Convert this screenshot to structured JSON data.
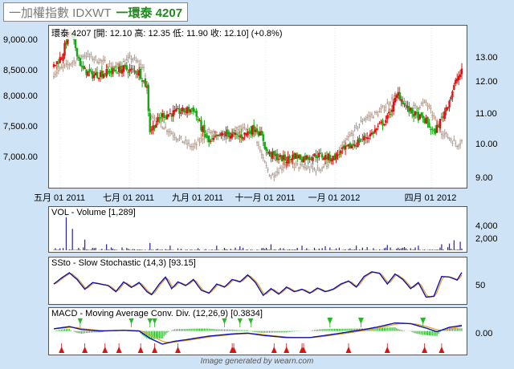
{
  "header": {
    "index_label": "一加權指數 IDXWT",
    "stock_label": "一環泰 4207"
  },
  "price_panel": {
    "title": "環泰 4207 [開: 12.10  高: 12.35  低: 11.90  收: 12.10] (+0.8%)"
  },
  "volume_panel": {
    "title": "VOL - Volume [1,289]"
  },
  "sto_panel": {
    "title": "SSto - Slow Stochastic (14,3) [93.15]"
  },
  "macd_panel": {
    "title": "MACD - Moving Average Conv. Div. (12,26,9) [0.3834]"
  },
  "footer": "Image generated by wearn.com",
  "colors": {
    "up": "#dd1111",
    "down": "#11aa11",
    "index_line": "#b09a8c",
    "k_line": "#1111aa",
    "d_line": "#e0a020",
    "volume": "#2222aa",
    "signal_buy": "#dd1111",
    "signal_sell": "#22bb22"
  },
  "chart_data": [
    {
      "type": "candlestick",
      "name": "price",
      "x_ticks": [
        "五月 01 2011",
        "七月 01 2011",
        "九月 01 2011",
        "十一月 01 2011",
        "一月 01 2012",
        "四月 01 2012"
      ],
      "left_axis_ticks": [
        "9,000.00",
        "8,500.00",
        "8,000.00",
        "7,500.00",
        "7,000.00"
      ],
      "right_axis_ticks": [
        "13.00",
        "12.00",
        "11.00",
        "10.00",
        "9.00"
      ],
      "left_range": [
        6800,
        9200
      ],
      "right_range": [
        8.5,
        13.5
      ],
      "stock_keypoints": [
        [
          0,
          12.3
        ],
        [
          5,
          12.6
        ],
        [
          10,
          13.4
        ],
        [
          14,
          12.9
        ],
        [
          18,
          12.2
        ],
        [
          25,
          12.0
        ],
        [
          35,
          12.1
        ],
        [
          45,
          12.2
        ],
        [
          55,
          12.1
        ],
        [
          60,
          11.6
        ],
        [
          62,
          10.2
        ],
        [
          70,
          10.7
        ],
        [
          80,
          10.8
        ],
        [
          90,
          10.9
        ],
        [
          95,
          10.3
        ],
        [
          100,
          9.8
        ],
        [
          110,
          10.1
        ],
        [
          120,
          10.0
        ],
        [
          130,
          10.3
        ],
        [
          135,
          9.9
        ],
        [
          137,
          9.5
        ],
        [
          143,
          9.35
        ],
        [
          150,
          9.25
        ],
        [
          155,
          9.4
        ],
        [
          160,
          9.3
        ],
        [
          170,
          9.4
        ],
        [
          180,
          9.3
        ],
        [
          185,
          9.5
        ],
        [
          195,
          9.8
        ],
        [
          205,
          10.1
        ],
        [
          215,
          10.6
        ],
        [
          222,
          11.4
        ],
        [
          228,
          10.9
        ],
        [
          233,
          10.7
        ],
        [
          240,
          10.5
        ],
        [
          245,
          10.1
        ],
        [
          250,
          10.6
        ],
        [
          255,
          11.2
        ],
        [
          260,
          11.9
        ],
        [
          263,
          12.1
        ]
      ],
      "index_keypoints": [
        [
          0,
          8500
        ],
        [
          10,
          8650
        ],
        [
          20,
          8800
        ],
        [
          30,
          8700
        ],
        [
          40,
          8600
        ],
        [
          50,
          8750
        ],
        [
          58,
          8600
        ],
        [
          62,
          7900
        ],
        [
          70,
          7700
        ],
        [
          80,
          7500
        ],
        [
          90,
          7350
        ],
        [
          100,
          7600
        ],
        [
          110,
          7500
        ],
        [
          120,
          7650
        ],
        [
          130,
          7550
        ],
        [
          135,
          7150
        ],
        [
          140,
          6900
        ],
        [
          145,
          7000
        ],
        [
          150,
          7100
        ],
        [
          160,
          7050
        ],
        [
          170,
          7000
        ],
        [
          180,
          7150
        ],
        [
          190,
          7500
        ],
        [
          200,
          7800
        ],
        [
          210,
          7900
        ],
        [
          220,
          8150
        ],
        [
          230,
          7950
        ],
        [
          240,
          8050
        ],
        [
          250,
          7600
        ],
        [
          260,
          7400
        ],
        [
          263,
          7450
        ]
      ],
      "bars": 264
    },
    {
      "type": "bar",
      "name": "volume",
      "y_ticks": [
        "4,000",
        "2,000"
      ],
      "ylim": [
        0,
        6000
      ],
      "spikes": [
        [
          8,
          5300
        ],
        [
          12,
          3200
        ],
        [
          20,
          1600
        ],
        [
          34,
          900
        ],
        [
          62,
          1100
        ],
        [
          75,
          700
        ],
        [
          105,
          700
        ],
        [
          120,
          600
        ],
        [
          140,
          900
        ],
        [
          160,
          700
        ],
        [
          175,
          600
        ],
        [
          195,
          700
        ],
        [
          215,
          800
        ],
        [
          235,
          700
        ],
        [
          250,
          900
        ],
        [
          255,
          1000
        ],
        [
          258,
          1500
        ],
        [
          262,
          1289
        ]
      ]
    },
    {
      "type": "line",
      "name": "slow_stochastic",
      "y_ticks": [
        "50"
      ],
      "ylim": [
        0,
        100
      ],
      "k_keypoints": [
        [
          0,
          55
        ],
        [
          5,
          75
        ],
        [
          10,
          92
        ],
        [
          15,
          70
        ],
        [
          20,
          38
        ],
        [
          25,
          60
        ],
        [
          30,
          55
        ],
        [
          35,
          50
        ],
        [
          40,
          30
        ],
        [
          45,
          62
        ],
        [
          50,
          44
        ],
        [
          55,
          60
        ],
        [
          60,
          30
        ],
        [
          63,
          20
        ],
        [
          68,
          55
        ],
        [
          72,
          78
        ],
        [
          76,
          40
        ],
        [
          80,
          62
        ],
        [
          85,
          50
        ],
        [
          90,
          70
        ],
        [
          95,
          35
        ],
        [
          100,
          25
        ],
        [
          105,
          55
        ],
        [
          110,
          45
        ],
        [
          115,
          70
        ],
        [
          120,
          62
        ],
        [
          125,
          85
        ],
        [
          130,
          60
        ],
        [
          135,
          18
        ],
        [
          140,
          40
        ],
        [
          145,
          22
        ],
        [
          150,
          45
        ],
        [
          155,
          30
        ],
        [
          160,
          38
        ],
        [
          165,
          25
        ],
        [
          170,
          42
        ],
        [
          175,
          30
        ],
        [
          180,
          38
        ],
        [
          185,
          55
        ],
        [
          190,
          65
        ],
        [
          195,
          45
        ],
        [
          200,
          80
        ],
        [
          205,
          95
        ],
        [
          210,
          90
        ],
        [
          215,
          55
        ],
        [
          220,
          88
        ],
        [
          225,
          70
        ],
        [
          230,
          40
        ],
        [
          235,
          60
        ],
        [
          240,
          12
        ],
        [
          245,
          15
        ],
        [
          250,
          80
        ],
        [
          255,
          78
        ],
        [
          260,
          68
        ],
        [
          263,
          93
        ]
      ]
    },
    {
      "type": "line",
      "name": "macd",
      "y_ticks": [
        "0.00"
      ],
      "ylim": [
        -1.5,
        0.8
      ],
      "macd_keypoints": [
        [
          0,
          0.15
        ],
        [
          10,
          0.3
        ],
        [
          18,
          0.1
        ],
        [
          30,
          0.0
        ],
        [
          45,
          0.05
        ],
        [
          55,
          0.0
        ],
        [
          62,
          -0.5
        ],
        [
          70,
          -0.9
        ],
        [
          78,
          -0.7
        ],
        [
          85,
          -0.6
        ],
        [
          100,
          -0.35
        ],
        [
          115,
          -0.2
        ],
        [
          125,
          -0.15
        ],
        [
          135,
          -0.3
        ],
        [
          140,
          -0.35
        ],
        [
          150,
          -0.45
        ],
        [
          165,
          -0.45
        ],
        [
          175,
          -0.3
        ],
        [
          185,
          -0.15
        ],
        [
          200,
          0.1
        ],
        [
          210,
          0.3
        ],
        [
          220,
          0.55
        ],
        [
          230,
          0.5
        ],
        [
          240,
          0.2
        ],
        [
          247,
          -0.05
        ],
        [
          255,
          0.25
        ],
        [
          263,
          0.38
        ]
      ],
      "buy_markers": [
        5,
        20,
        33,
        42,
        56,
        65,
        80,
        115,
        116,
        142,
        150,
        160,
        161,
        190,
        215,
        239,
        250
      ],
      "sell_markers": [
        17,
        50,
        62,
        65,
        110,
        120,
        127,
        178,
        198,
        238
      ]
    }
  ]
}
